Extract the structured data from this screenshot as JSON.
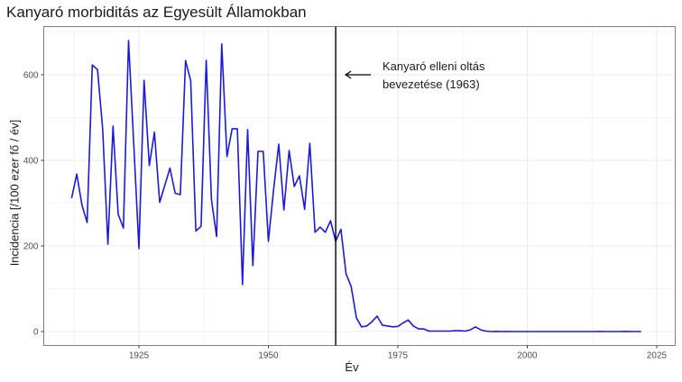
{
  "title": "Kanyaró morbiditás az Egyesült Államokban",
  "chart_data": {
    "type": "line",
    "title": "Kanyaró morbiditás az Egyesült Államokban",
    "xlabel": "Év",
    "ylabel": "Incidencia [/100 ezer fő / év]",
    "xlim": [
      1907,
      2027
    ],
    "ylim": [
      -30,
      715
    ],
    "xticks": [
      1925,
      1950,
      1975,
      2000,
      2025
    ],
    "yticks": [
      0,
      200,
      400,
      600
    ],
    "grid": true,
    "legend": "none",
    "line_color": "#1a1adb",
    "vline": {
      "x": 1963,
      "color": "#000000"
    },
    "annotation": {
      "lines": [
        "Kanyaró elleni oltás",
        "bevezetése (1963)"
      ],
      "arrow_to": [
        1963,
        600
      ]
    },
    "series": [
      {
        "name": "Incidencia",
        "x": [
          1912,
          1913,
          1914,
          1915,
          1916,
          1917,
          1918,
          1919,
          1920,
          1921,
          1922,
          1923,
          1924,
          1925,
          1926,
          1927,
          1928,
          1929,
          1930,
          1931,
          1932,
          1933,
          1934,
          1935,
          1936,
          1937,
          1938,
          1939,
          1940,
          1941,
          1942,
          1943,
          1944,
          1945,
          1946,
          1947,
          1948,
          1949,
          1950,
          1951,
          1952,
          1953,
          1954,
          1955,
          1956,
          1957,
          1958,
          1959,
          1960,
          1961,
          1962,
          1963,
          1964,
          1965,
          1966,
          1967,
          1968,
          1969,
          1970,
          1971,
          1972,
          1973,
          1974,
          1975,
          1976,
          1977,
          1978,
          1979,
          1980,
          1981,
          1982,
          1983,
          1984,
          1985,
          1986,
          1987,
          1988,
          1989,
          1990,
          1991,
          1992,
          1993,
          1994,
          1995,
          1996,
          1997,
          1998,
          1999,
          2000,
          2001,
          2002,
          2003,
          2004,
          2005,
          2006,
          2007,
          2008,
          2009,
          2010,
          2011,
          2012,
          2013,
          2014,
          2015,
          2016,
          2017,
          2018,
          2019,
          2020,
          2021,
          2022
        ],
        "values": [
          312,
          368,
          295,
          255,
          623,
          612,
          474,
          204,
          480,
          274,
          242,
          680,
          437,
          194,
          587,
          388,
          466,
          302,
          342,
          382,
          323,
          320,
          633,
          586,
          235,
          246,
          634,
          308,
          222,
          672,
          409,
          474,
          474,
          110,
          472,
          154,
          421,
          421,
          211,
          330,
          438,
          284,
          423,
          339,
          364,
          286,
          440,
          232,
          244,
          232,
          259,
          211,
          239,
          135,
          105,
          32,
          11,
          13,
          23,
          36,
          15,
          13,
          11,
          12,
          20,
          27,
          13,
          6,
          6,
          1,
          1,
          1,
          1,
          1,
          2,
          2,
          1,
          4,
          11,
          4,
          1,
          0.1,
          0.4,
          0.1,
          0.2,
          0.1,
          0.1,
          0.03,
          0.03,
          0.04,
          0.02,
          0.02,
          0.01,
          0.02,
          0.02,
          0.01,
          0.05,
          0.02,
          0.02,
          0.07,
          0.02,
          0.06,
          0.2,
          0.06,
          0.03,
          0.04,
          0.1,
          0.4,
          0.004,
          0.02,
          0.04
        ]
      }
    ]
  }
}
